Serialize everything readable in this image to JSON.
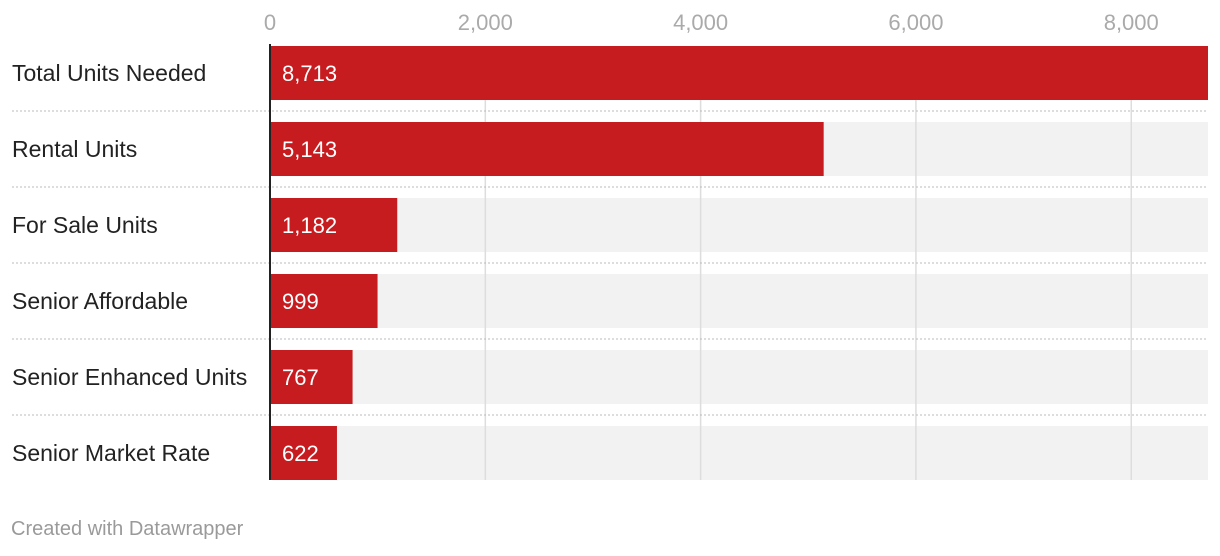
{
  "chart_data": {
    "type": "bar",
    "orientation": "horizontal",
    "categories": [
      "Total Units Needed",
      "Rental Units",
      "For Sale Units",
      "Senior Affordable",
      "Senior Enhanced Units",
      "Senior Market Rate"
    ],
    "values": [
      8713,
      5143,
      1182,
      999,
      767,
      622
    ],
    "value_labels": [
      "8,713",
      "5,143",
      "1,182",
      "999",
      "767",
      "622"
    ],
    "xlim": [
      0,
      8713
    ],
    "x_ticks": [
      0,
      2000,
      4000,
      6000,
      8000
    ],
    "x_tick_labels": [
      "0",
      "2,000",
      "4,000",
      "6,000",
      "8,000"
    ],
    "tick_position": "top",
    "grid": true,
    "legend": "none"
  },
  "footer": {
    "credit": "Created with Datawrapper"
  },
  "colors": {
    "bar": "#c71c1f",
    "track": "#f2f2f2",
    "grid": "#dddddd",
    "tick_text": "#aaaaaa",
    "row_text": "#222222",
    "separator": "#bbbbbb",
    "footer_text": "#9a9a9a"
  }
}
